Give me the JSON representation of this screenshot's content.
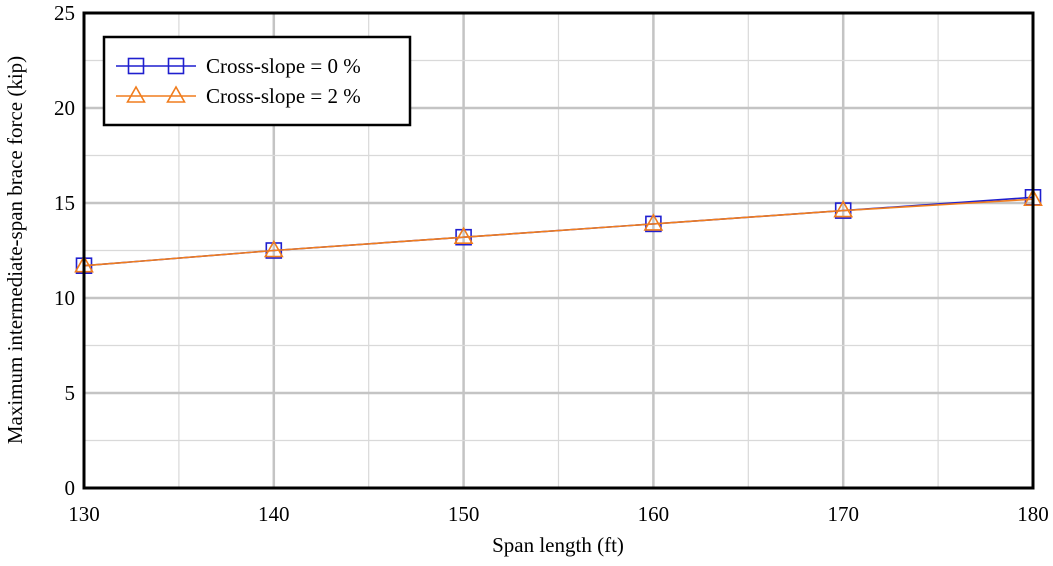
{
  "chart_data": {
    "type": "line",
    "title": "",
    "xlabel": "Span length (ft)",
    "ylabel": "Maximum intermediate-span brace force (kip)",
    "xlim": [
      130,
      180
    ],
    "ylim": [
      0,
      25
    ],
    "xticks": [
      130,
      140,
      150,
      160,
      170,
      180
    ],
    "yticks": [
      0,
      5,
      10,
      15,
      20,
      25
    ],
    "grid": true,
    "legend_position": "top-left",
    "series": [
      {
        "name": "Cross-slope = 0 %",
        "color": "#1f1fcf",
        "marker": "square",
        "x": [
          130,
          140,
          150,
          160,
          170,
          180
        ],
        "y": [
          11.7,
          12.5,
          13.2,
          13.9,
          14.6,
          15.3
        ]
      },
      {
        "name": "Cross-slope = 2 %",
        "color": "#f07d1e",
        "marker": "triangle",
        "x": [
          130,
          140,
          150,
          160,
          170,
          180
        ],
        "y": [
          11.7,
          12.5,
          13.2,
          13.9,
          14.6,
          15.2
        ]
      }
    ]
  }
}
